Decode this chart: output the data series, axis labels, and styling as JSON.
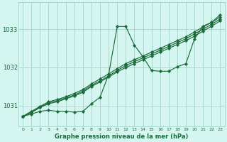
{
  "title": "Graphe pression niveau de la mer (hPa)",
  "bg_color": "#d4f5f0",
  "grid_color": "#a8d8d0",
  "line_color": "#1a6b3a",
  "marker_color": "#1a6b3a",
  "x_ticks": [
    0,
    1,
    2,
    3,
    4,
    5,
    6,
    7,
    8,
    9,
    10,
    11,
    12,
    13,
    14,
    15,
    16,
    17,
    18,
    19,
    20,
    21,
    22,
    23
  ],
  "y_ticks": [
    1031,
    1032,
    1033
  ],
  "ylim": [
    1030.45,
    1033.7
  ],
  "xlim": [
    -0.5,
    23.5
  ],
  "series": [
    [
      1030.72,
      1030.78,
      1030.85,
      1030.88,
      1030.85,
      1030.85,
      1030.83,
      1030.85,
      1031.05,
      1031.22,
      1031.82,
      1033.07,
      1033.07,
      1032.58,
      1032.28,
      1031.92,
      1031.9,
      1031.9,
      1032.02,
      1032.1,
      1032.75,
      1033.08,
      1033.18,
      1033.38
    ],
    [
      1030.72,
      1030.82,
      1030.95,
      1031.05,
      1031.1,
      1031.18,
      1031.25,
      1031.35,
      1031.5,
      1031.62,
      1031.75,
      1031.88,
      1032.0,
      1032.1,
      1032.2,
      1032.3,
      1032.4,
      1032.5,
      1032.6,
      1032.7,
      1032.82,
      1032.95,
      1033.08,
      1033.22
    ],
    [
      1030.72,
      1030.83,
      1030.96,
      1031.07,
      1031.13,
      1031.2,
      1031.28,
      1031.38,
      1031.53,
      1031.65,
      1031.78,
      1031.92,
      1032.05,
      1032.15,
      1032.25,
      1032.35,
      1032.45,
      1032.55,
      1032.65,
      1032.75,
      1032.88,
      1033.0,
      1033.13,
      1033.27
    ],
    [
      1030.72,
      1030.85,
      1030.98,
      1031.1,
      1031.16,
      1031.23,
      1031.32,
      1031.42,
      1031.57,
      1031.7,
      1031.83,
      1031.97,
      1032.1,
      1032.2,
      1032.3,
      1032.4,
      1032.5,
      1032.6,
      1032.7,
      1032.8,
      1032.93,
      1033.06,
      1033.18,
      1033.32
    ]
  ]
}
